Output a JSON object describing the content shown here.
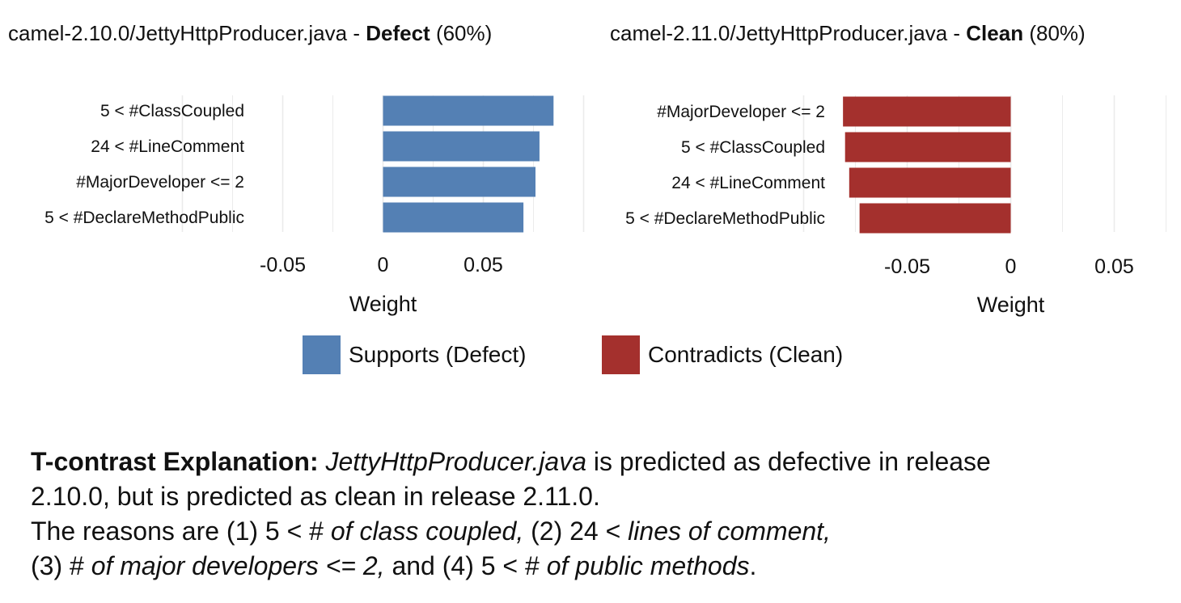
{
  "colors": {
    "supports": "#5480B4",
    "contradicts": "#A4302D",
    "grid": "#EBEBEB",
    "baseline": "#ffffff"
  },
  "chart_data": [
    {
      "type": "bar",
      "orientation": "horizontal",
      "title": {
        "file": "camel-2.10.0/JettyHttpProducer.java",
        "sep": " - ",
        "label": "Defect",
        "prob": "(60%)"
      },
      "xlabel": "Weight",
      "xlim": [
        -0.1,
        0.1
      ],
      "xticks": [
        -0.05,
        0,
        0.05
      ],
      "xtick_labels": [
        "-0.05",
        "0",
        "0.05"
      ],
      "categories": [
        "5 < #ClassCoupled",
        "24 < #LineComment",
        "#MajorDeveloper <= 2",
        "5 < #DeclareMethodPublic"
      ],
      "values": [
        0.085,
        0.078,
        0.076,
        0.07
      ],
      "series_name": "Supports (Defect)"
    },
    {
      "type": "bar",
      "orientation": "horizontal",
      "title": {
        "file": "camel-2.11.0/JettyHttpProducer.java",
        "sep": " - ",
        "label": "Clean",
        "prob": "(80%)"
      },
      "xlabel": "Weight",
      "xlim": [
        -0.1,
        0.1
      ],
      "xticks": [
        -0.05,
        0,
        0.05
      ],
      "xtick_labels": [
        "-0.05",
        "0",
        "0.05"
      ],
      "categories": [
        "#MajorDeveloper <= 2",
        "5 < #ClassCoupled",
        "24 < #LineComment",
        "5 < #DeclareMethodPublic"
      ],
      "values": [
        -0.081,
        -0.08,
        -0.078,
        -0.073
      ],
      "series_name": "Contradicts (Clean)"
    }
  ],
  "legend": [
    {
      "label": "Supports (Defect)",
      "color": "#5480B4"
    },
    {
      "label": "Contradicts (Clean)",
      "color": "#A4302D"
    }
  ],
  "explanation": {
    "heading": "T-contrast Explanation:",
    "file": "JettyHttpProducer.java",
    "line1_rest": " is predicted as defective in release",
    "line2": "2.10.0, but is predicted as clean in release 2.11.0.",
    "line3_a": "The reasons are (1) 5 < # ",
    "line3_b": "of class coupled,",
    "line3_c": " (2) 24 < ",
    "line3_d": "lines of comment,",
    "line4_a": "(3) # ",
    "line4_b": "of major developers <= 2,",
    "line4_c": " and (4) 5 < # ",
    "line4_d": "of public methods",
    "line4_e": "."
  }
}
